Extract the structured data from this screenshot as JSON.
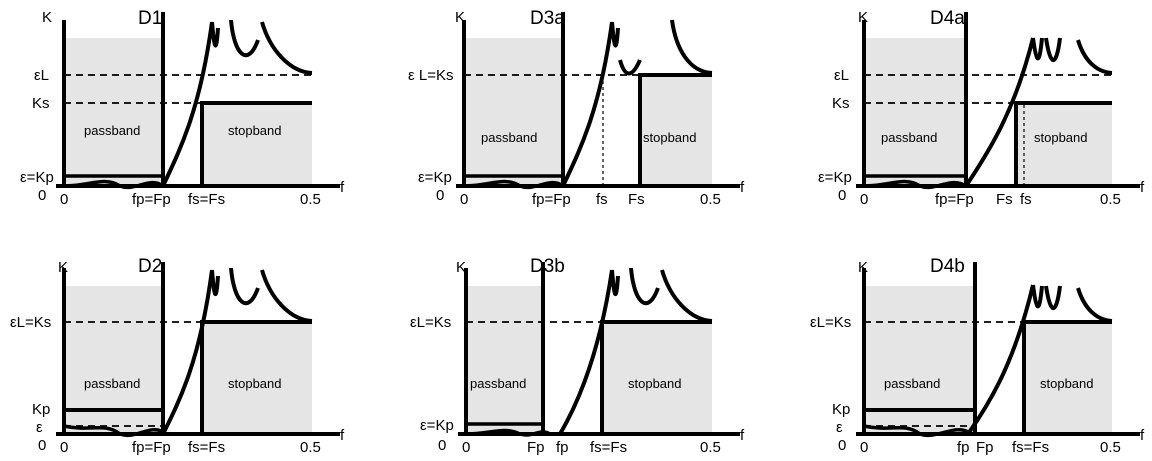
{
  "panels": [
    {
      "id": "D1",
      "title": "D1",
      "y_axis": "K",
      "x_axis": "f",
      "y_ticks": [
        "εL",
        "Ks",
        "ε=Kp",
        "0"
      ],
      "x_ticks": [
        "0",
        "fp=Fp",
        "fs=Fs",
        "0.5"
      ],
      "regions": [
        "passband",
        "stopband"
      ]
    },
    {
      "id": "D3a",
      "title": "D3a",
      "y_axis": "K",
      "x_axis": "f",
      "y_ticks": [
        "ε L=Ks",
        "ε=Kp",
        "0"
      ],
      "x_ticks": [
        "0",
        "fp=Fp",
        "fs",
        "Fs",
        "0.5"
      ],
      "regions": [
        "passband",
        "stopband"
      ]
    },
    {
      "id": "D4a",
      "title": "D4a",
      "y_axis": "K",
      "x_axis": "f",
      "y_ticks": [
        "εL",
        "Ks",
        "ε=Kp",
        "0"
      ],
      "x_ticks": [
        "0",
        "fp=Fp",
        "Fs",
        "fs",
        "0.5"
      ],
      "regions": [
        "passband",
        "stopband"
      ]
    },
    {
      "id": "D2",
      "title": "D2",
      "y_axis": "K",
      "x_axis": "f",
      "y_ticks": [
        "εL=Ks",
        "Kp",
        "ε",
        "0"
      ],
      "x_ticks": [
        "0",
        "fp=Fp",
        "fs=Fs",
        "0.5"
      ],
      "regions": [
        "passband",
        "stopband"
      ]
    },
    {
      "id": "D3b",
      "title": "D3b",
      "y_axis": "K",
      "x_axis": "f",
      "y_ticks": [
        "εL=Ks",
        "ε=Kp",
        "0"
      ],
      "x_ticks": [
        "0",
        "Fp",
        "fp",
        "fs=Fs",
        "0.5"
      ],
      "regions": [
        "passband",
        "stopband"
      ]
    },
    {
      "id": "D4b",
      "title": "D4b",
      "y_axis": "K",
      "x_axis": "f",
      "y_ticks": [
        "εL=Ks",
        "Kp",
        "ε",
        "0"
      ],
      "x_ticks": [
        "0",
        "fp",
        "Fp",
        "fs=Fs",
        "0.5"
      ],
      "regions": [
        "passband",
        "stopband"
      ]
    }
  ],
  "colors": {
    "band_fill": "#e5e5e5",
    "line": "#000000"
  }
}
